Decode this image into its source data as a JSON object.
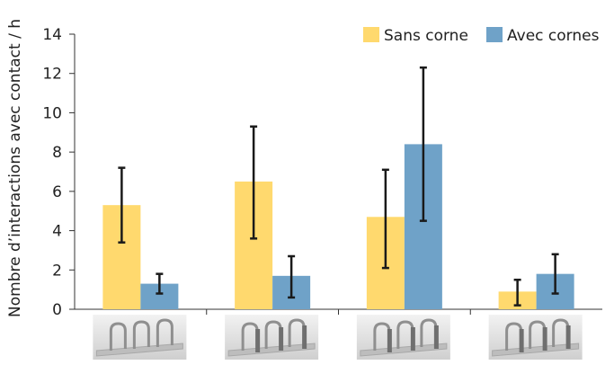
{
  "chart_data": {
    "type": "bar",
    "title": "",
    "xlabel": "",
    "ylabel": "Nombre d’interactions avec contact / h",
    "ylim": [
      0,
      14
    ],
    "yticks": [
      0,
      2,
      4,
      6,
      8,
      10,
      12,
      14
    ],
    "grid": false,
    "legend_position": "top-right",
    "category_count": 4,
    "categories": [
      "",
      "",
      "",
      ""
    ],
    "category_images": [
      "crib-unit-icon",
      "crib-unit-icon",
      "crib-unit-icon",
      "crib-unit-icon"
    ],
    "series": [
      {
        "name": "Sans corne",
        "color": "#FFD96E",
        "values": [
          5.3,
          6.5,
          4.7,
          0.9
        ],
        "error_low": [
          3.4,
          3.6,
          2.1,
          0.2
        ],
        "error_high": [
          7.2,
          9.3,
          7.1,
          1.5
        ]
      },
      {
        "name": "Avec cornes",
        "color": "#6FA2C8",
        "values": [
          1.3,
          1.7,
          8.4,
          1.8
        ],
        "error_low": [
          0.8,
          0.6,
          4.5,
          0.8
        ],
        "error_high": [
          1.8,
          2.7,
          12.3,
          2.8
        ]
      }
    ]
  }
}
